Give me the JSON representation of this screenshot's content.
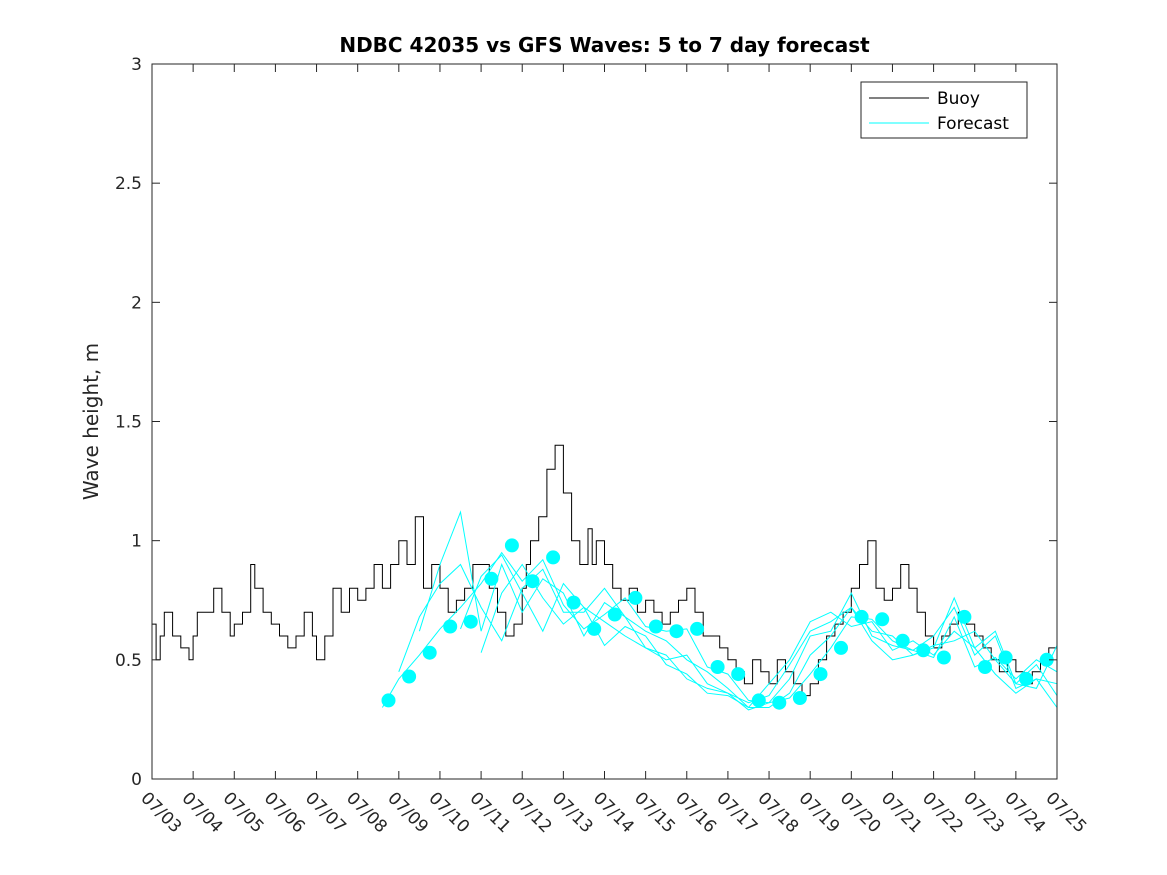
{
  "chart_data": {
    "type": "line",
    "title": "NDBC 42035 vs GFS Waves: 5 to 7 day forecast",
    "xlabel": "",
    "ylabel": "Wave height, m",
    "x_range": [
      "07/03",
      "07/25"
    ],
    "ylim": [
      0,
      3
    ],
    "y_ticks": [
      0,
      0.5,
      1,
      1.5,
      2,
      2.5,
      3
    ],
    "x_ticks": [
      "07/03",
      "07/04",
      "07/05",
      "07/06",
      "07/07",
      "07/08",
      "07/09",
      "07/10",
      "07/11",
      "07/12",
      "07/13",
      "07/14",
      "07/15",
      "07/16",
      "07/17",
      "07/18",
      "07/19",
      "07/20",
      "07/21",
      "07/22",
      "07/23",
      "07/24",
      "07/25"
    ],
    "grid": false,
    "legend": {
      "placement": "top-right",
      "entries": [
        {
          "label": "Buoy",
          "color": "#000000"
        },
        {
          "label": "Forecast",
          "color": "#00ffff"
        }
      ]
    },
    "series": [
      {
        "name": "Buoy",
        "color": "#000000",
        "x": [
          0,
          0.1,
          0.2,
          0.3,
          0.5,
          0.7,
          0.9,
          1.0,
          1.1,
          1.3,
          1.5,
          1.7,
          1.9,
          2.0,
          2.2,
          2.4,
          2.5,
          2.7,
          2.9,
          3.1,
          3.3,
          3.5,
          3.7,
          3.9,
          4.0,
          4.2,
          4.4,
          4.6,
          4.8,
          5.0,
          5.2,
          5.4,
          5.6,
          5.8,
          6.0,
          6.2,
          6.4,
          6.6,
          6.8,
          7.0,
          7.2,
          7.4,
          7.6,
          7.8,
          8.0,
          8.2,
          8.4,
          8.6,
          8.8,
          9.0,
          9.1,
          9.2,
          9.4,
          9.6,
          9.8,
          10.0,
          10.2,
          10.4,
          10.6,
          10.7,
          10.8,
          11.0,
          11.2,
          11.4,
          11.6,
          11.8,
          12.0,
          12.2,
          12.4,
          12.6,
          12.8,
          13.0,
          13.2,
          13.4,
          13.6,
          13.8,
          14.0,
          14.2,
          14.4,
          14.6,
          14.8,
          15.0,
          15.2,
          15.4,
          15.6,
          15.8,
          16.0,
          16.2,
          16.4,
          16.6,
          16.8,
          17.0,
          17.2,
          17.4,
          17.6,
          17.8,
          18.0,
          18.2,
          18.4,
          18.6,
          18.8,
          19.0,
          19.2,
          19.4,
          19.6,
          19.8,
          20.0,
          20.2,
          20.4,
          20.6,
          20.8,
          21.0,
          21.2,
          21.4,
          21.6,
          21.8,
          22.0
        ],
        "values": [
          0.65,
          0.5,
          0.6,
          0.7,
          0.6,
          0.55,
          0.5,
          0.6,
          0.7,
          0.7,
          0.8,
          0.7,
          0.6,
          0.65,
          0.7,
          0.9,
          0.8,
          0.7,
          0.65,
          0.6,
          0.55,
          0.6,
          0.7,
          0.6,
          0.5,
          0.6,
          0.8,
          0.7,
          0.8,
          0.75,
          0.8,
          0.9,
          0.8,
          0.9,
          1.0,
          0.9,
          1.1,
          0.8,
          0.9,
          0.8,
          0.7,
          0.75,
          0.8,
          0.9,
          0.9,
          0.8,
          0.7,
          0.6,
          0.65,
          0.8,
          0.9,
          1.0,
          1.1,
          1.3,
          1.4,
          1.2,
          1.0,
          0.9,
          1.05,
          0.9,
          1.0,
          0.9,
          0.8,
          0.75,
          0.8,
          0.7,
          0.75,
          0.7,
          0.65,
          0.7,
          0.75,
          0.8,
          0.7,
          0.6,
          0.6,
          0.55,
          0.5,
          0.45,
          0.4,
          0.5,
          0.45,
          0.4,
          0.5,
          0.45,
          0.4,
          0.35,
          0.4,
          0.5,
          0.6,
          0.65,
          0.7,
          0.8,
          0.9,
          1.0,
          0.8,
          0.75,
          0.8,
          0.9,
          0.8,
          0.7,
          0.6,
          0.55,
          0.6,
          0.65,
          0.7,
          0.65,
          0.6,
          0.55,
          0.5,
          0.45,
          0.5,
          0.45,
          0.4,
          0.45,
          0.5,
          0.55,
          0.5
        ]
      },
      {
        "name": "",
        "color": "#00ffff",
        "x": [
          5.6,
          6.0,
          6.5,
          7.0,
          7.5,
          8.0,
          8.5,
          9.0,
          9.5,
          10.0,
          10.5,
          11.0,
          11.5,
          12.0,
          12.5,
          13.0,
          13.5,
          14.0,
          14.5,
          15.0,
          15.5,
          16.0,
          16.5,
          17.0,
          17.5,
          18.0,
          18.5,
          19.0,
          19.5,
          20.0,
          20.5,
          21.0,
          21.5,
          22.0
        ],
        "values": [
          0.3,
          0.42,
          0.52,
          0.63,
          0.72,
          0.82,
          0.95,
          0.83,
          0.92,
          0.73,
          0.63,
          0.69,
          0.76,
          0.64,
          0.62,
          0.63,
          0.47,
          0.44,
          0.33,
          0.32,
          0.34,
          0.44,
          0.55,
          0.68,
          0.67,
          0.58,
          0.54,
          0.51,
          0.68,
          0.47,
          0.51,
          0.42,
          0.5,
          0.45
        ]
      },
      {
        "name": "",
        "color": "#00ffff",
        "x": [
          6.0,
          6.5,
          7.0,
          7.5,
          8.0,
          8.5,
          9.0,
          9.5,
          10.0,
          10.5,
          11.0,
          11.5,
          12.0,
          12.5,
          13.0,
          13.5,
          14.0,
          14.5,
          15.0,
          15.5,
          16.0,
          16.5,
          17.0,
          17.5,
          18.0,
          18.5,
          19.0,
          19.5,
          20.0,
          20.5,
          21.0,
          21.5,
          22.0
        ],
        "values": [
          0.45,
          0.68,
          0.82,
          0.9,
          0.72,
          0.58,
          0.8,
          0.88,
          0.7,
          0.7,
          0.8,
          0.68,
          0.62,
          0.58,
          0.5,
          0.45,
          0.38,
          0.3,
          0.3,
          0.36,
          0.52,
          0.6,
          0.72,
          0.62,
          0.6,
          0.52,
          0.55,
          0.76,
          0.55,
          0.62,
          0.4,
          0.48,
          0.35
        ]
      },
      {
        "name": "",
        "color": "#00ffff",
        "x": [
          6.5,
          7.0,
          7.5,
          8.0,
          8.5,
          9.0,
          9.5,
          10.0,
          10.5,
          11.0,
          11.5,
          12.0,
          12.5,
          13.0,
          13.5,
          14.0,
          14.5,
          15.0,
          15.5,
          16.0,
          16.5,
          17.0,
          17.5,
          18.0,
          18.5,
          19.0,
          19.5,
          20.0,
          20.5,
          21.0,
          21.5,
          22.0
        ],
        "values": [
          0.62,
          0.9,
          1.12,
          0.62,
          0.9,
          0.7,
          0.84,
          0.78,
          0.6,
          0.74,
          0.68,
          0.55,
          0.5,
          0.52,
          0.4,
          0.36,
          0.29,
          0.32,
          0.42,
          0.6,
          0.62,
          0.78,
          0.6,
          0.56,
          0.54,
          0.6,
          0.72,
          0.52,
          0.6,
          0.38,
          0.42,
          0.3
        ]
      },
      {
        "name": "",
        "color": "#00ffff",
        "x": [
          7.5,
          8.0,
          8.5,
          9.0,
          9.5,
          10.0,
          10.5,
          11.0,
          11.5,
          12.0,
          12.5,
          13.0,
          13.5,
          14.0,
          14.5,
          15.0,
          15.5,
          16.0,
          16.5,
          17.0,
          17.5,
          18.0,
          18.5,
          19.0,
          19.5,
          20.0,
          20.5,
          21.0,
          21.5,
          22.0
        ],
        "values": [
          0.63,
          0.85,
          0.94,
          0.78,
          0.62,
          0.82,
          0.72,
          0.56,
          0.64,
          0.6,
          0.48,
          0.44,
          0.36,
          0.35,
          0.3,
          0.4,
          0.5,
          0.66,
          0.7,
          0.64,
          0.66,
          0.54,
          0.58,
          0.52,
          0.62,
          0.55,
          0.44,
          0.36,
          0.42,
          0.4
        ]
      },
      {
        "name": "",
        "color": "#00ffff",
        "x": [
          8.0,
          8.5,
          9.0,
          9.5,
          10.0,
          10.5,
          11.0,
          11.5,
          12.0,
          12.5,
          13.0,
          13.5,
          14.0,
          14.5,
          15.0,
          15.5,
          16.0,
          16.5,
          17.0,
          17.5,
          18.0,
          18.5,
          19.0,
          19.5,
          20.0,
          20.5,
          21.0,
          21.5,
          22.0
        ],
        "values": [
          0.53,
          0.78,
          0.9,
          0.76,
          0.65,
          0.72,
          0.66,
          0.6,
          0.55,
          0.52,
          0.42,
          0.38,
          0.36,
          0.32,
          0.35,
          0.48,
          0.62,
          0.66,
          0.72,
          0.58,
          0.5,
          0.52,
          0.56,
          0.58,
          0.62,
          0.5,
          0.4,
          0.38,
          0.56
        ]
      }
    ],
    "markers": {
      "color": "#00ffff",
      "x": [
        5.75,
        6.25,
        6.75,
        7.25,
        7.75,
        8.25,
        8.75,
        9.25,
        9.75,
        10.25,
        10.75,
        11.25,
        11.75,
        12.25,
        12.75,
        13.25,
        13.75,
        14.25,
        14.75,
        15.25,
        15.75,
        16.25,
        16.75,
        17.25,
        17.75,
        18.25,
        18.75,
        19.25,
        19.75,
        20.25,
        20.75,
        21.25,
        21.75
      ],
      "values": [
        0.33,
        0.43,
        0.53,
        0.64,
        0.66,
        0.84,
        0.98,
        0.83,
        0.93,
        0.74,
        0.63,
        0.69,
        0.76,
        0.64,
        0.62,
        0.63,
        0.47,
        0.44,
        0.33,
        0.32,
        0.34,
        0.44,
        0.55,
        0.68,
        0.67,
        0.58,
        0.54,
        0.51,
        0.68,
        0.47,
        0.51,
        0.42,
        0.5
      ]
    }
  }
}
